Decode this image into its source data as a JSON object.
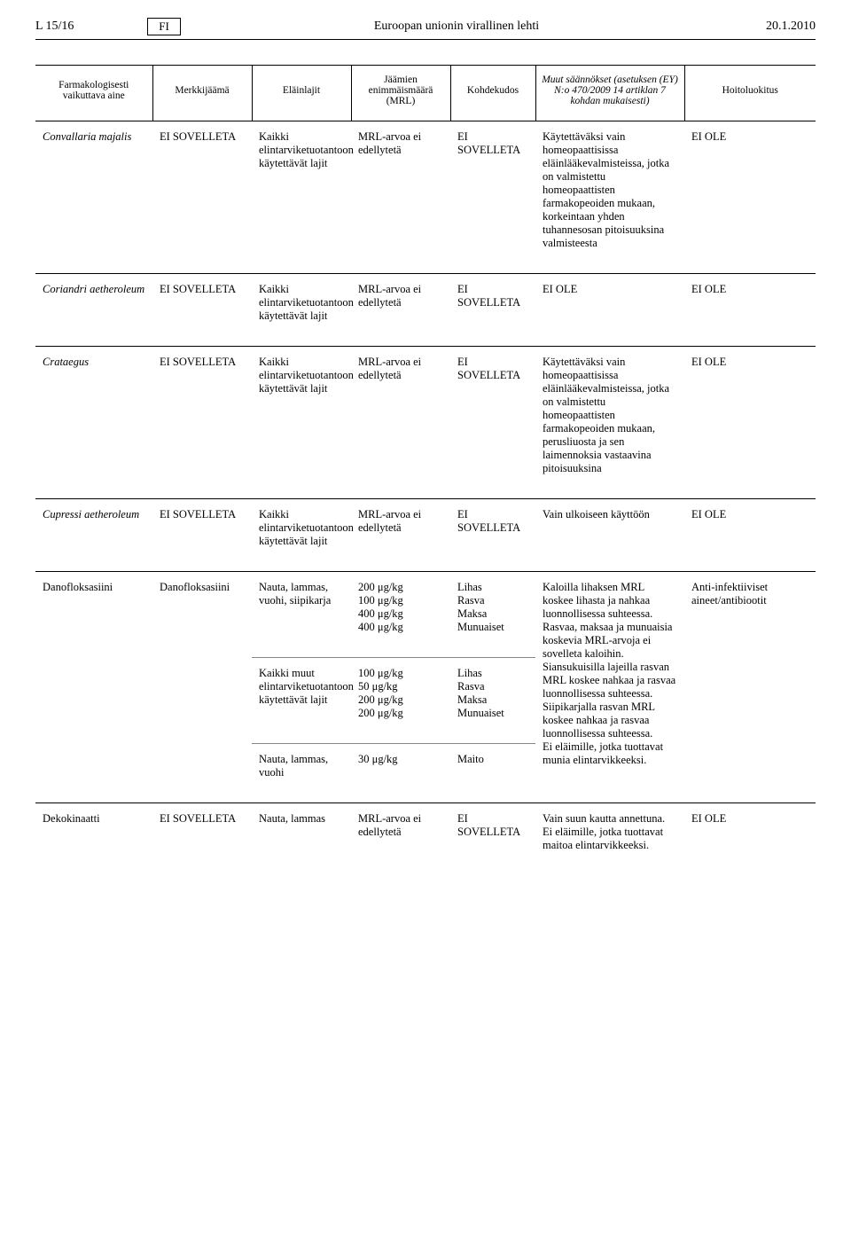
{
  "header": {
    "left": "L 15/16",
    "fi": "FI",
    "center": "Euroopan unionin virallinen lehti",
    "right": "20.1.2010"
  },
  "columns": {
    "c1": "Farmakologisesti vaikuttava aine",
    "c2": "Merkkijäämä",
    "c3": "Eläinlajit",
    "c4": "Jäämien enimmäismäärä (MRL)",
    "c5": "Kohdekudos",
    "c6": "Muut säännökset (asetuksen (EY) N:o 470/2009 14 artiklan 7 kohdan mukaisesti)",
    "c7": "Hoitoluokitus"
  },
  "labels": {
    "ei_sovelleta": "EI SOVELLETA",
    "kaikki_elintarvike": "Kaikki elintarviketuotantoon käytettävät lajit",
    "mrl_ei_edellyteta": "MRL-arvoa ei edellytetä",
    "ei_sovel_leta": "EI SOVELLETA",
    "ei_ole": "EI OLE"
  },
  "row1": {
    "name": "Convallaria majalis",
    "muut": "Käytettäväksi vain homeopaattisissa eläinlääkevalmisteissa, jotka on valmistettu homeopaattisten farmakopeoiden mukaan, korkeintaan yhden tuhannesosan pitoisuuksina valmisteesta"
  },
  "row2": {
    "name": "Coriandri aetheroleum",
    "muut": "EI OLE"
  },
  "row3": {
    "name": "Crataegus",
    "muut": "Käytettäväksi vain homeopaattisissa eläinlääkevalmisteissa, jotka on valmistettu homeopaattisten farmakopeoiden mukaan, perusliuosta ja sen laimennoksia vastaavina pitoisuuksina"
  },
  "row4": {
    "name": "Cupressi aetheroleum",
    "muut": "Vain ulkoiseen käyttöön"
  },
  "row5": {
    "name": "Danofloksasiini",
    "merkki": "Danofloksasiini",
    "elain_a": "Nauta, lammas, vuohi, siipikarja",
    "mrl_a": "200 μg/kg\n100 μg/kg\n400 μg/kg\n400 μg/kg",
    "kohde_a": "Lihas\nRasva\nMaksa\nMunuaiset",
    "elain_b": "Kaikki muut elintarviketuotantoon käytettävät lajit",
    "mrl_b": "100 μg/kg\n50 μg/kg\n200 μg/kg\n200 μg/kg",
    "kohde_b": "Lihas\nRasva\nMaksa\nMunuaiset",
    "elain_c": "Nauta, lammas, vuohi",
    "mrl_c": "30 μg/kg",
    "kohde_c": "Maito",
    "muut": "Kaloilla lihaksen MRL koskee lihasta ja nahkaa luonnollisessa suhteessa.\nRasvaa, maksaa ja munuaisia koskevia MRL-arvoja ei sovelleta kaloihin.\nSiansukuisilla lajeilla rasvan MRL koskee nahkaa ja rasvaa luonnollisessa suhteessa.\nSiipikarjalla rasvan MRL koskee nahkaa ja rasvaa luonnollisessa suhteessa.\nEi eläimille, jotka tuottavat munia elintarvikkeeksi.",
    "hoito": "Anti-infektiiviset aineet/antibiootit"
  },
  "row6": {
    "name": "Dekokinaatti",
    "elain": "Nauta, lammas",
    "muut": "Vain suun kautta annettuna. Ei eläimille, jotka tuottavat maitoa elintarvikkeeksi."
  }
}
